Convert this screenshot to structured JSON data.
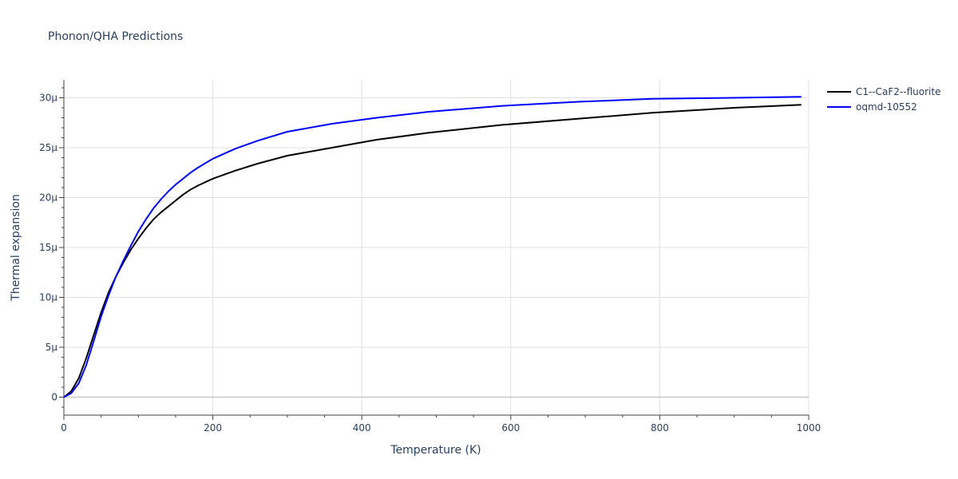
{
  "chart_data": {
    "type": "line",
    "title": "Phonon/QHA Predictions",
    "xlabel": "Temperature (K)",
    "ylabel": "Thermal expansion",
    "xlim": [
      0,
      1000
    ],
    "ylim": [
      -1.8e-06,
      3.18e-05
    ],
    "x_ticks": [
      0,
      200,
      400,
      600,
      800,
      1000
    ],
    "x_tick_labels": [
      "0",
      "200",
      "400",
      "600",
      "800",
      "1000"
    ],
    "y_ticks": [
      0,
      5e-06,
      1e-05,
      1.5e-05,
      2e-05,
      2.5e-05,
      3e-05
    ],
    "y_tick_labels": [
      "0",
      "5μ",
      "10μ",
      "15μ",
      "20μ",
      "25μ",
      "30μ"
    ],
    "grid": true,
    "legend_position": "top-right",
    "series": [
      {
        "name": "C1--CaF2--fluorite",
        "color": "#000000",
        "x": [
          0,
          10,
          20,
          30,
          40,
          50,
          60,
          70,
          80,
          90,
          100,
          110,
          120,
          130,
          140,
          150,
          160,
          170,
          180,
          200,
          230,
          260,
          300,
          360,
          420,
          490,
          590,
          690,
          790,
          900,
          990
        ],
        "y": [
          0,
          6e-07,
          1.9e-06,
          3.9e-06,
          6.2e-06,
          8.5e-06,
          1.05e-05,
          1.21e-05,
          1.35e-05,
          1.48e-05,
          1.59e-05,
          1.69e-05,
          1.78e-05,
          1.85e-05,
          1.91e-05,
          1.97e-05,
          2.03e-05,
          2.08e-05,
          2.12e-05,
          2.19e-05,
          2.27e-05,
          2.34e-05,
          2.42e-05,
          2.5e-05,
          2.58e-05,
          2.65e-05,
          2.73e-05,
          2.79e-05,
          2.85e-05,
          2.9e-05,
          2.93e-05
        ]
      },
      {
        "name": "oqmd-10552",
        "color": "#0000ff",
        "x": [
          0,
          10,
          20,
          30,
          40,
          50,
          60,
          70,
          80,
          90,
          100,
          110,
          120,
          130,
          140,
          150,
          160,
          170,
          180,
          200,
          230,
          260,
          300,
          360,
          420,
          490,
          590,
          690,
          790,
          900,
          990
        ],
        "y": [
          0,
          4e-07,
          1.4e-06,
          3.2e-06,
          5.6e-06,
          8.1e-06,
          1.02e-05,
          1.21e-05,
          1.37e-05,
          1.52e-05,
          1.66e-05,
          1.78e-05,
          1.89e-05,
          1.98e-05,
          2.06e-05,
          2.13e-05,
          2.19e-05,
          2.25e-05,
          2.3e-05,
          2.39e-05,
          2.49e-05,
          2.57e-05,
          2.66e-05,
          2.74e-05,
          2.8e-05,
          2.86e-05,
          2.92e-05,
          2.96e-05,
          2.99e-05,
          3e-05,
          3.01e-05
        ]
      }
    ]
  }
}
